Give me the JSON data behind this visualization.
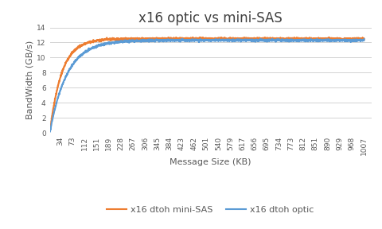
{
  "title": "x16 optic vs mini-SAS",
  "xlabel": "Message Size (KB)",
  "ylabel": "BandWidth (GB/s)",
  "x_ticks": [
    34,
    73,
    112,
    151,
    189,
    228,
    267,
    306,
    345,
    384,
    423,
    462,
    501,
    540,
    579,
    617,
    656,
    695,
    734,
    773,
    812,
    851,
    890,
    929,
    968,
    1007
  ],
  "ylim": [
    0,
    14
  ],
  "yticks": [
    0,
    2,
    4,
    6,
    8,
    10,
    12,
    14
  ],
  "legend": [
    {
      "label": "x16 dtoh optic",
      "color": "#5B9BD5",
      "linewidth": 1.5
    },
    {
      "label": "x16 dtoh mini-SAS",
      "color": "#ED7D31",
      "linewidth": 1.5
    }
  ],
  "bg_color": "#FFFFFF",
  "grid_color": "#D3D3D3",
  "title_color": "#404040",
  "axis_label_color": "#595959",
  "tick_label_color": "#595959",
  "optic_sat": 12.3,
  "optic_knee": 55,
  "minisas_sat": 12.5,
  "minisas_knee": 38,
  "noise_std": 0.07,
  "title_fontsize": 12,
  "label_fontsize": 8,
  "tick_fontsize": 6.5,
  "legend_fontsize": 8
}
